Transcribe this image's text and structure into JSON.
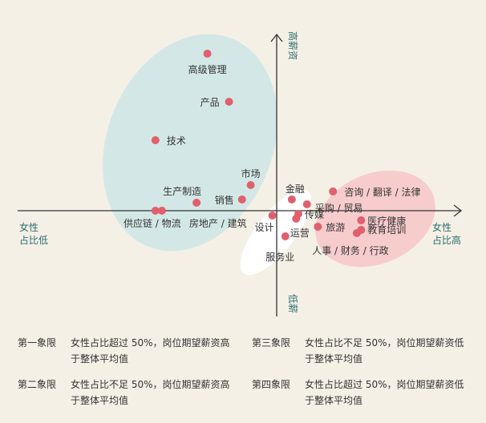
{
  "chart_data": {
    "type": "scatter",
    "x_axis": {
      "left_label_line1": "女性",
      "left_label_line2": "占比低",
      "right_label_line1": "女性",
      "right_label_line2": "占比高"
    },
    "y_axis": {
      "top_label": "高薪资",
      "bottom_label": "低薪"
    },
    "xlim": [
      -50,
      50
    ],
    "ylim": [
      -25,
      55
    ],
    "points": [
      {
        "label": "高级管理",
        "x": -16,
        "y": 49
      },
      {
        "label": "产品",
        "x": -11,
        "y": 34
      },
      {
        "label": "技术",
        "x": -28,
        "y": 22
      },
      {
        "label": "市场",
        "x": -6,
        "y": 8
      },
      {
        "label": "销售",
        "x": -8,
        "y": 3.5
      },
      {
        "label": "生产制造",
        "x": -18.5,
        "y": 2.5
      },
      {
        "label": "供应链 / 物流",
        "x": -28,
        "y": 0
      },
      {
        "label": "房地产 / 建筑",
        "x": -26.5,
        "y": 0
      },
      {
        "label": "设计",
        "x": -1,
        "y": -1.5
      },
      {
        "label": "金融",
        "x": 3.5,
        "y": 3.5
      },
      {
        "label": "采购 / 贸易",
        "x": 7,
        "y": 2
      },
      {
        "label": "传媒",
        "x": 5,
        "y": -1
      },
      {
        "label": "服务业",
        "x": 4.5,
        "y": -2.5
      },
      {
        "label": "运营",
        "x": 2,
        "y": -8
      },
      {
        "label": "旅游",
        "x": 9.5,
        "y": -5
      },
      {
        "label": "咨询 / 翻译 / 法律",
        "x": 13,
        "y": 6
      },
      {
        "label": "医疗健康",
        "x": 19.5,
        "y": -3
      },
      {
        "label": "教育培训",
        "x": 19.5,
        "y": -6
      },
      {
        "label": "人事 / 财务 / 行政",
        "x": 18.5,
        "y": -7
      }
    ]
  },
  "legend": [
    {
      "quadrant": "第一象限",
      "desc": "女性占比超过 50%，岗位期望薪资高于整体平均值"
    },
    {
      "quadrant": "第三象限",
      "desc": "女性占比不足 50%，岗位期望薪资低于整体平均值"
    },
    {
      "quadrant": "第二象限",
      "desc": "女性占比不足 50%，岗位期望薪资高于整体平均值"
    },
    {
      "quadrant": "第四象限",
      "desc": "女性占比超过 50%，岗位期望薪资低于整体平均值"
    }
  ],
  "colors": {
    "point": "#e0606e",
    "cluster_left": "#d3e8e6",
    "cluster_right": "#f7cccc",
    "cluster_center": "#ffffff",
    "axis_label": "#2c6e6e",
    "background": "#f5f0e6"
  }
}
